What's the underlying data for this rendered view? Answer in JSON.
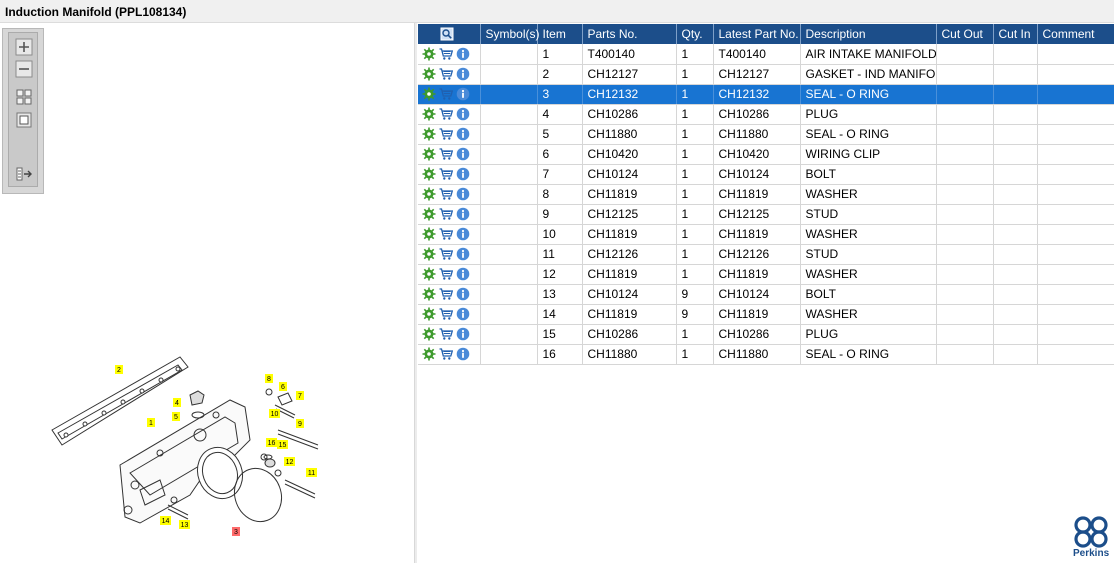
{
  "window": {
    "title": "Induction Manifold (PPL108134)"
  },
  "toolbar": {
    "zoom_in": "zoom-in",
    "zoom_out": "zoom-out",
    "fit": "fit-window",
    "actual": "actual-size",
    "export": "export"
  },
  "colors": {
    "header": "#1c4e8a",
    "selected": "#1874d2",
    "callout": "#ffff00",
    "callout_sel": "#ff5a5a"
  },
  "table": {
    "headers": [
      "",
      "Symbol(s)",
      "Item",
      "Parts No.",
      "Qty.",
      "Latest Part No.",
      "Description",
      "Cut Out",
      "Cut In",
      "Comment"
    ],
    "rows": [
      {
        "item": "1",
        "part": "T400140",
        "qty": "1",
        "latest": "T400140",
        "desc": "AIR INTAKE MANIFOLD"
      },
      {
        "item": "2",
        "part": "CH12127",
        "qty": "1",
        "latest": "CH12127",
        "desc": "GASKET - IND MANIFOLD"
      },
      {
        "item": "3",
        "part": "CH12132",
        "qty": "1",
        "latest": "CH12132",
        "desc": "SEAL - O RING"
      },
      {
        "item": "4",
        "part": "CH10286",
        "qty": "1",
        "latest": "CH10286",
        "desc": "PLUG"
      },
      {
        "item": "5",
        "part": "CH11880",
        "qty": "1",
        "latest": "CH11880",
        "desc": "SEAL - O RING"
      },
      {
        "item": "6",
        "part": "CH10420",
        "qty": "1",
        "latest": "CH10420",
        "desc": "WIRING CLIP"
      },
      {
        "item": "7",
        "part": "CH10124",
        "qty": "1",
        "latest": "CH10124",
        "desc": "BOLT"
      },
      {
        "item": "8",
        "part": "CH11819",
        "qty": "1",
        "latest": "CH11819",
        "desc": "WASHER"
      },
      {
        "item": "9",
        "part": "CH12125",
        "qty": "1",
        "latest": "CH12125",
        "desc": "STUD"
      },
      {
        "item": "10",
        "part": "CH11819",
        "qty": "1",
        "latest": "CH11819",
        "desc": "WASHER"
      },
      {
        "item": "11",
        "part": "CH12126",
        "qty": "1",
        "latest": "CH12126",
        "desc": "STUD"
      },
      {
        "item": "12",
        "part": "CH11819",
        "qty": "1",
        "latest": "CH11819",
        "desc": "WASHER"
      },
      {
        "item": "13",
        "part": "CH10124",
        "qty": "9",
        "latest": "CH10124",
        "desc": "BOLT"
      },
      {
        "item": "14",
        "part": "CH11819",
        "qty": "9",
        "latest": "CH11819",
        "desc": "WASHER"
      },
      {
        "item": "15",
        "part": "CH10286",
        "qty": "1",
        "latest": "CH10286",
        "desc": "PLUG"
      },
      {
        "item": "16",
        "part": "CH11880",
        "qty": "1",
        "latest": "CH11880",
        "desc": "SEAL - O RING"
      }
    ],
    "selected_item": "3"
  },
  "callouts": [
    "1",
    "2",
    "3",
    "4",
    "5",
    "6",
    "7",
    "8",
    "9",
    "10",
    "11",
    "12",
    "13",
    "14",
    "15",
    "16"
  ],
  "brand": {
    "name": "Perkins"
  }
}
